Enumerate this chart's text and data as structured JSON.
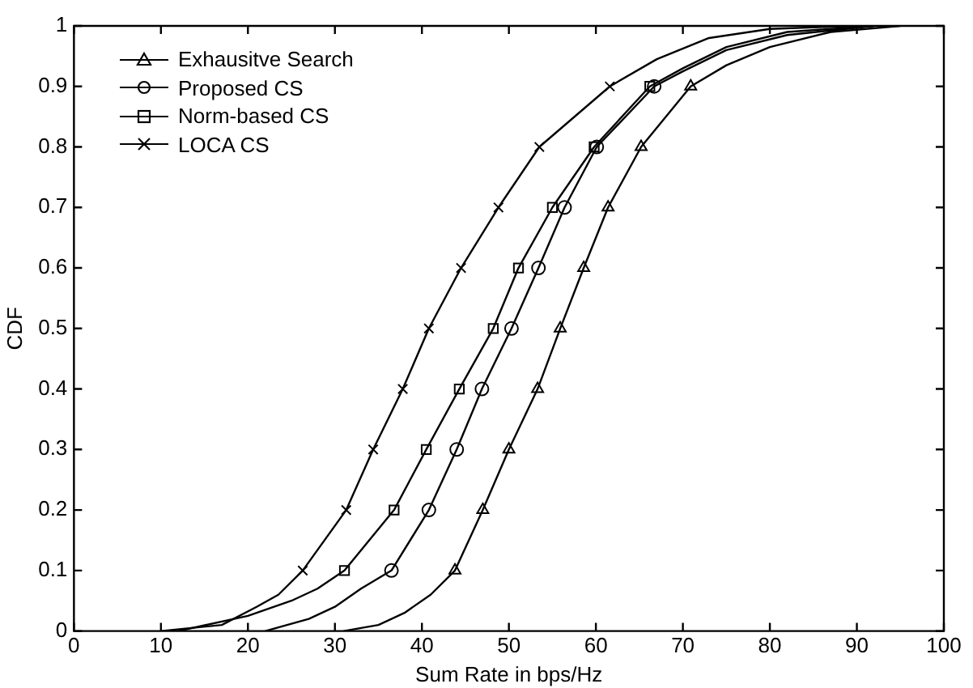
{
  "chart_data": {
    "type": "line",
    "xlabel": "Sum Rate in bps/Hz",
    "ylabel": "CDF",
    "xlim": [
      0,
      100
    ],
    "ylim": [
      0,
      1
    ],
    "xticks": [
      0,
      10,
      20,
      30,
      40,
      50,
      60,
      70,
      80,
      90,
      100
    ],
    "yticks": [
      0,
      0.1,
      0.2,
      0.3,
      0.4,
      0.5,
      0.6,
      0.7,
      0.8,
      0.9,
      1
    ],
    "grid": false,
    "legend": "top left",
    "line_style": "solid",
    "series": [
      {
        "name": "Exhausitve Search",
        "color": "#000000",
        "marker": "triangle",
        "x": [
          31,
          35,
          38,
          41,
          43.8,
          47.0,
          50.0,
          53.3,
          55.9,
          58.6,
          61.4,
          65.2,
          70.9,
          75,
          80,
          87,
          95
        ],
        "values": [
          0,
          0.01,
          0.03,
          0.06,
          0.1,
          0.2,
          0.3,
          0.4,
          0.5,
          0.6,
          0.7,
          0.8,
          0.9,
          0.935,
          0.965,
          0.99,
          1
        ]
      },
      {
        "name": "Proposed CS",
        "color": "#000000",
        "marker": "circle",
        "x": [
          22,
          27,
          30,
          33,
          36.5,
          40.8,
          44.0,
          46.9,
          50.3,
          53.4,
          56.4,
          60.1,
          66.7,
          70,
          75,
          82,
          92
        ],
        "values": [
          0,
          0.02,
          0.04,
          0.07,
          0.1,
          0.2,
          0.3,
          0.4,
          0.5,
          0.6,
          0.7,
          0.8,
          0.9,
          0.925,
          0.96,
          0.985,
          1
        ]
      },
      {
        "name": "Norm-based CS",
        "color": "#000000",
        "marker": "square",
        "x": [
          12,
          20,
          25,
          28,
          31.1,
          36.8,
          40.5,
          44.3,
          48.2,
          51.1,
          55.0,
          59.8,
          66.2,
          70,
          75,
          82,
          92
        ],
        "values": [
          0,
          0.025,
          0.05,
          0.07,
          0.1,
          0.2,
          0.3,
          0.4,
          0.5,
          0.6,
          0.7,
          0.8,
          0.9,
          0.93,
          0.965,
          0.99,
          1
        ]
      },
      {
        "name": "LOCA CS",
        "color": "#000000",
        "marker": "cross",
        "x": [
          10,
          17,
          21,
          23.5,
          26.3,
          31.3,
          34.4,
          37.8,
          40.8,
          44.5,
          48.8,
          53.5,
          61.6,
          67,
          73,
          80,
          90
        ],
        "values": [
          0,
          0.01,
          0.04,
          0.06,
          0.1,
          0.2,
          0.3,
          0.4,
          0.5,
          0.6,
          0.7,
          0.8,
          0.9,
          0.945,
          0.98,
          0.995,
          1
        ]
      }
    ]
  }
}
